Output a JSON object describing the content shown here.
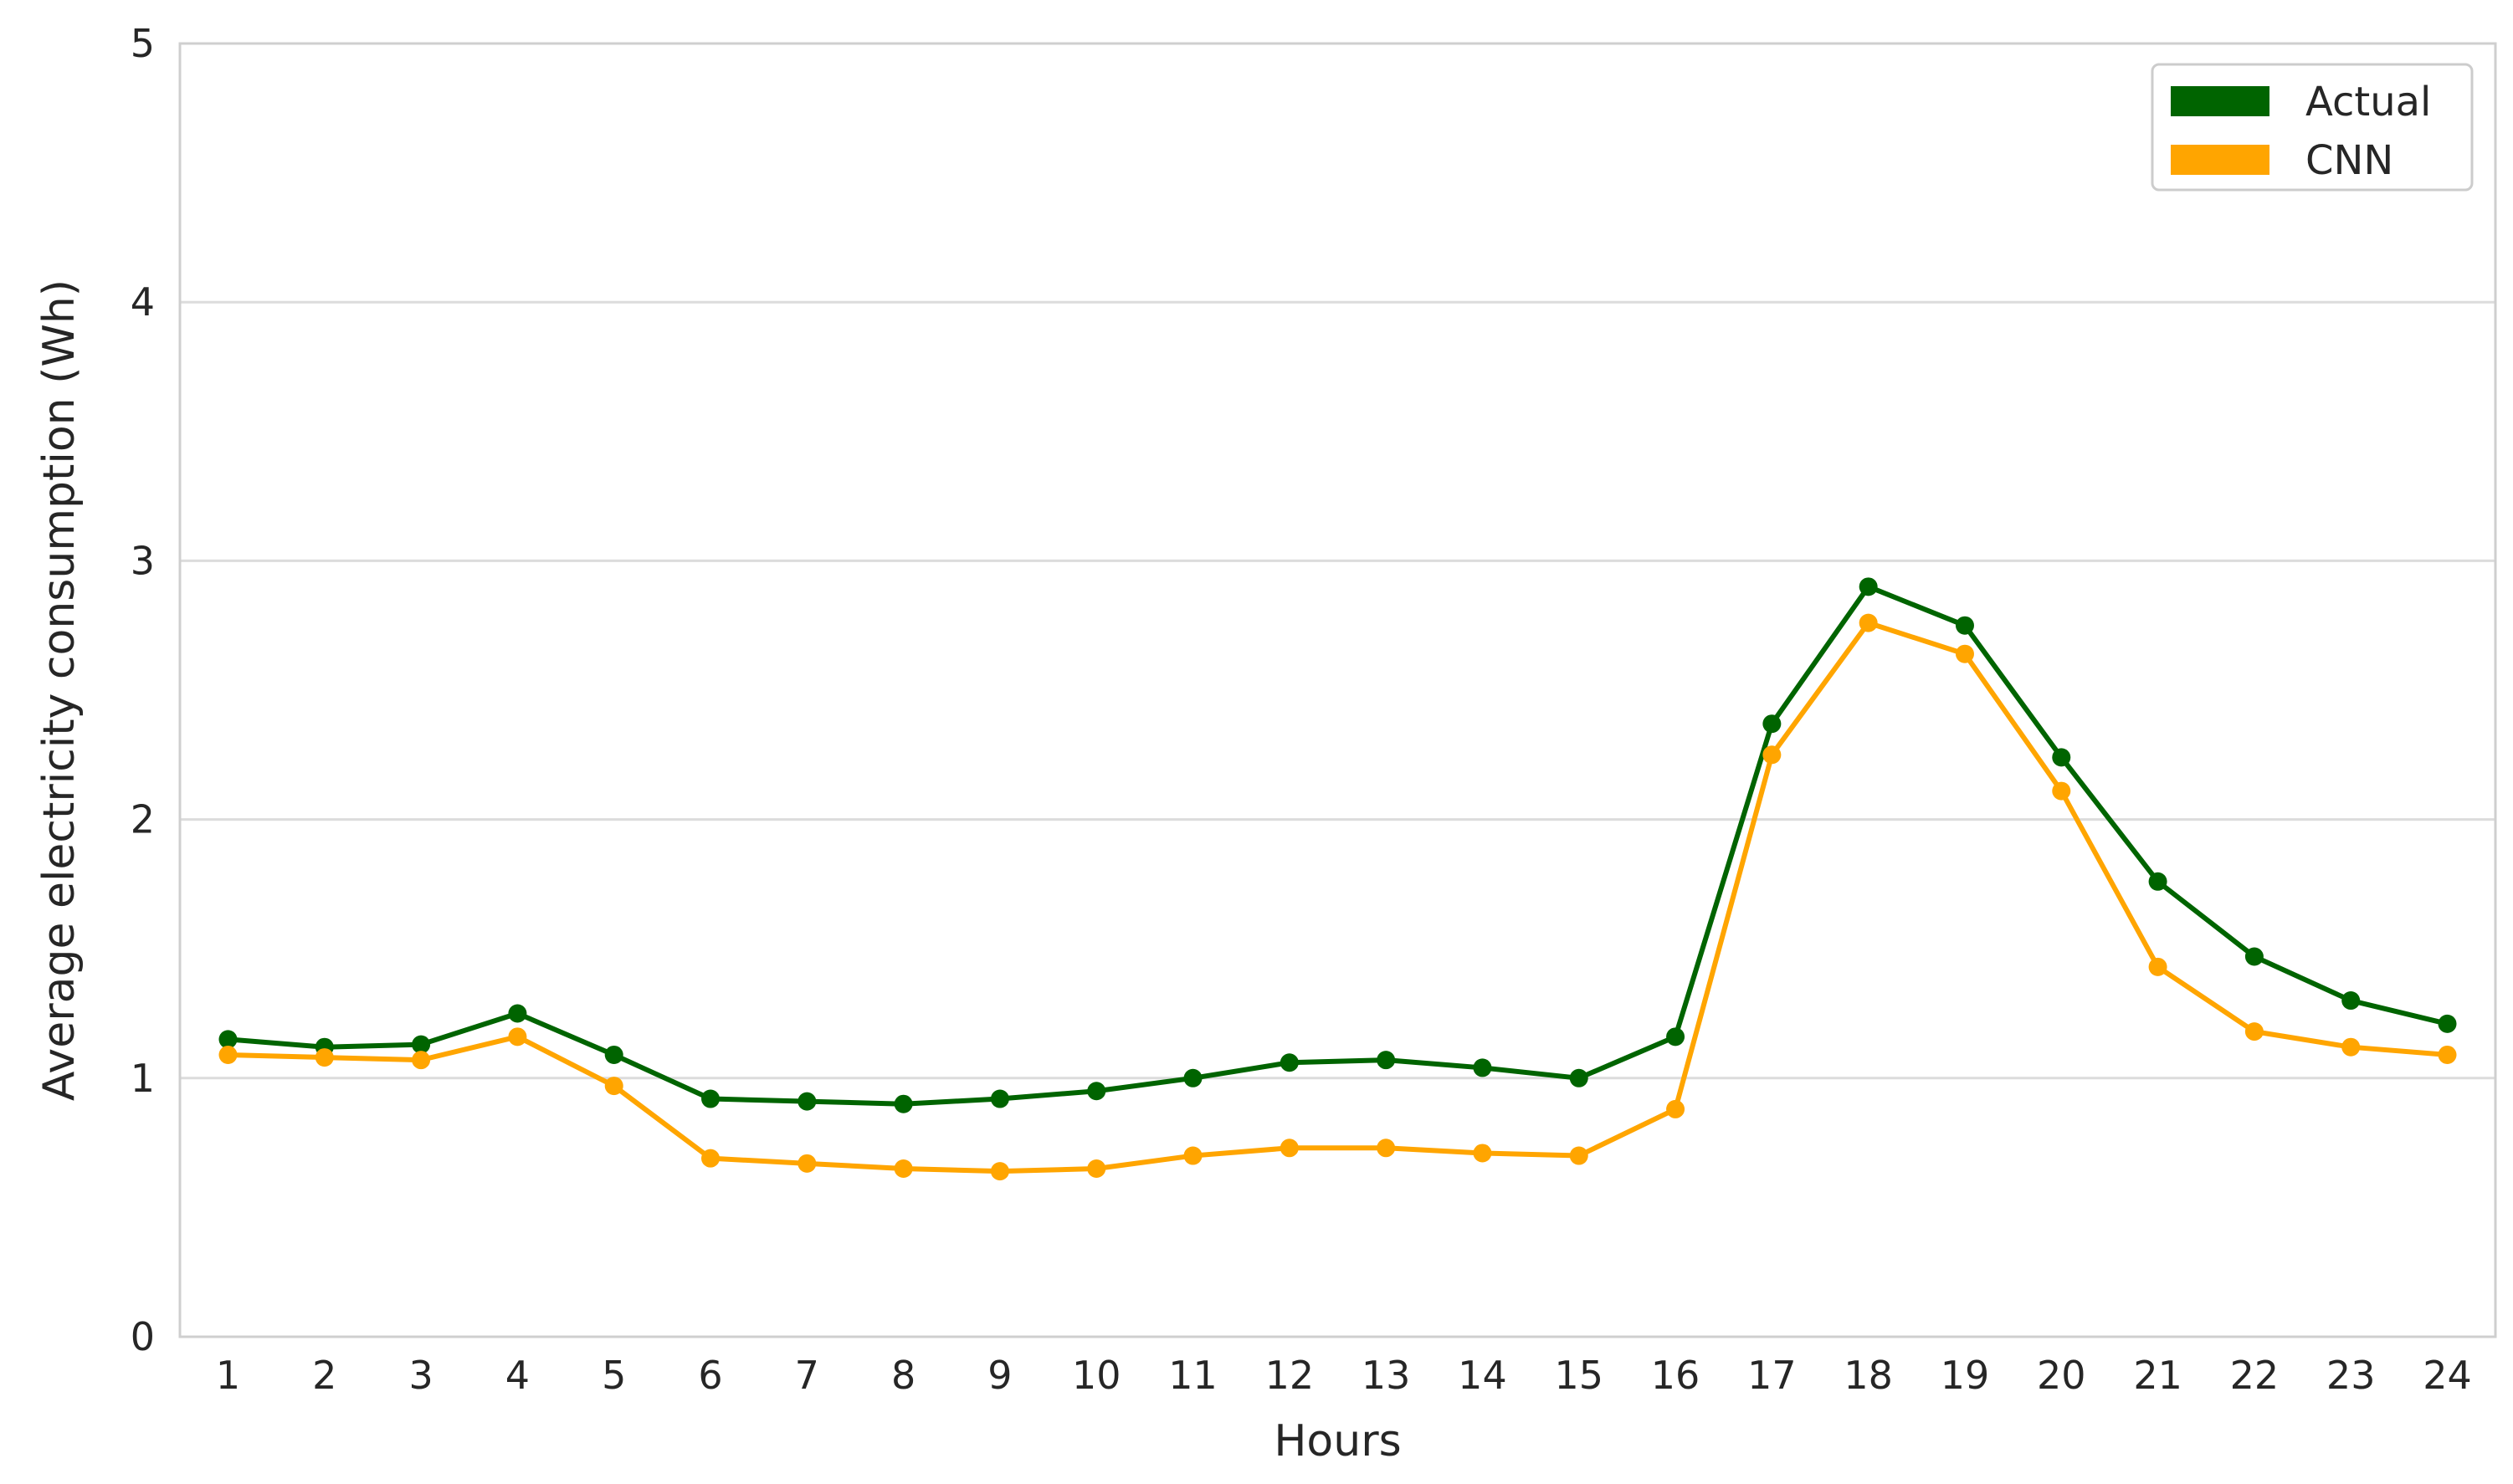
{
  "chart_data": {
    "type": "line",
    "title": "",
    "xlabel": "Hours",
    "ylabel": "Average electricity consumption (Wh)",
    "x": [
      1,
      2,
      3,
      4,
      5,
      6,
      7,
      8,
      9,
      10,
      11,
      12,
      13,
      14,
      15,
      16,
      17,
      18,
      19,
      20,
      21,
      22,
      23,
      24
    ],
    "xticks": [
      "1",
      "2",
      "3",
      "4",
      "5",
      "6",
      "7",
      "8",
      "9",
      "10",
      "11",
      "12",
      "13",
      "14",
      "15",
      "16",
      "17",
      "18",
      "19",
      "20",
      "21",
      "22",
      "23",
      "24"
    ],
    "ylim": [
      0,
      5
    ],
    "yticks": [
      "0",
      "1",
      "2",
      "3",
      "4",
      "5"
    ],
    "grid": "horizontal",
    "legend_position": "top-right",
    "series": [
      {
        "name": "Actual",
        "color": "#006400",
        "values": [
          1.15,
          1.12,
          1.13,
          1.25,
          1.09,
          0.92,
          0.91,
          0.9,
          0.92,
          0.95,
          1.0,
          1.06,
          1.07,
          1.04,
          1.0,
          1.16,
          2.37,
          2.9,
          2.75,
          2.24,
          1.76,
          1.47,
          1.3,
          1.21
        ]
      },
      {
        "name": "CNN",
        "color": "#FFA500",
        "values": [
          1.09,
          1.08,
          1.07,
          1.16,
          0.97,
          0.69,
          0.67,
          0.65,
          0.64,
          0.65,
          0.7,
          0.73,
          0.73,
          0.71,
          0.7,
          0.88,
          2.25,
          2.76,
          2.64,
          2.11,
          1.43,
          1.18,
          1.12,
          1.09
        ]
      }
    ]
  }
}
